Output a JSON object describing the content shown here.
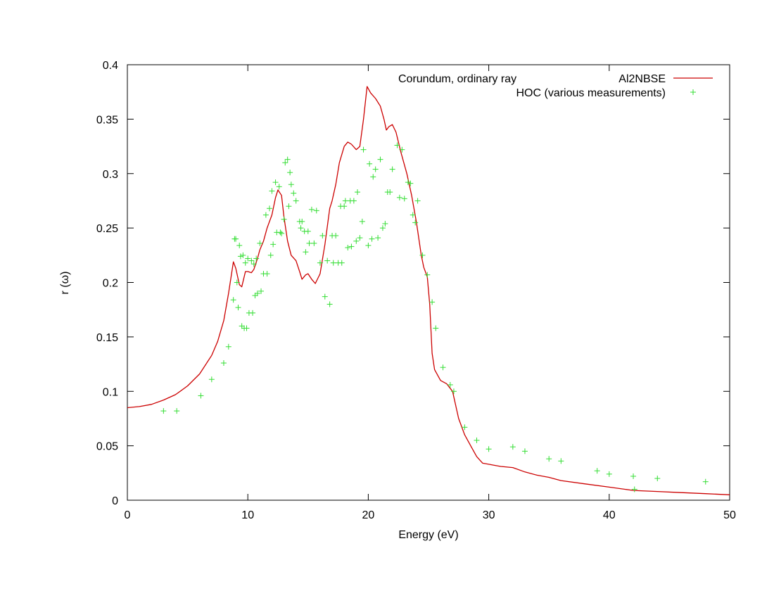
{
  "chart_data": {
    "type": "line",
    "title": "Corundum, ordinary ray",
    "xlabel": "Energy (eV)",
    "ylabel": "r (ω)",
    "xlim": [
      0,
      50
    ],
    "ylim": [
      0,
      0.4
    ],
    "xticks": [
      0,
      10,
      20,
      30,
      40,
      50
    ],
    "yticks": [
      0,
      0.05,
      0.1,
      0.15,
      0.2,
      0.25,
      0.3,
      0.35,
      0.4
    ],
    "xtick_labels": [
      "0",
      "10",
      "20",
      "30",
      "40",
      "50"
    ],
    "ytick_labels": [
      "0",
      "0.05",
      "0.1",
      "0.15",
      "0.2",
      "0.25",
      "0.3",
      "0.35",
      "0.4"
    ],
    "grid": false,
    "legend_position": "top-right",
    "series": [
      {
        "name": "Al2NBSE",
        "kind": "line",
        "color": "#cc0000",
        "points": [
          [
            0,
            0.085
          ],
          [
            1,
            0.086
          ],
          [
            2,
            0.088
          ],
          [
            3,
            0.092
          ],
          [
            4,
            0.097
          ],
          [
            5,
            0.105
          ],
          [
            6,
            0.116
          ],
          [
            7,
            0.133
          ],
          [
            7.5,
            0.146
          ],
          [
            8,
            0.165
          ],
          [
            8.4,
            0.19
          ],
          [
            8.8,
            0.219
          ],
          [
            9,
            0.213
          ],
          [
            9.3,
            0.198
          ],
          [
            9.5,
            0.196
          ],
          [
            9.8,
            0.21
          ],
          [
            10,
            0.21
          ],
          [
            10.3,
            0.209
          ],
          [
            10.5,
            0.212
          ],
          [
            10.8,
            0.222
          ],
          [
            11,
            0.23
          ],
          [
            11.3,
            0.238
          ],
          [
            11.6,
            0.25
          ],
          [
            12,
            0.262
          ],
          [
            12.3,
            0.278
          ],
          [
            12.5,
            0.285
          ],
          [
            12.8,
            0.28
          ],
          [
            13,
            0.26
          ],
          [
            13.3,
            0.238
          ],
          [
            13.6,
            0.225
          ],
          [
            14,
            0.22
          ],
          [
            14.3,
            0.21
          ],
          [
            14.5,
            0.203
          ],
          [
            14.8,
            0.207
          ],
          [
            15,
            0.208
          ],
          [
            15.3,
            0.203
          ],
          [
            15.6,
            0.199
          ],
          [
            16,
            0.208
          ],
          [
            16.4,
            0.235
          ],
          [
            16.8,
            0.268
          ],
          [
            17,
            0.275
          ],
          [
            17.3,
            0.29
          ],
          [
            17.6,
            0.31
          ],
          [
            18,
            0.325
          ],
          [
            18.3,
            0.329
          ],
          [
            18.6,
            0.327
          ],
          [
            19,
            0.322
          ],
          [
            19.3,
            0.325
          ],
          [
            19.6,
            0.35
          ],
          [
            19.9,
            0.38
          ],
          [
            20.2,
            0.374
          ],
          [
            20.6,
            0.369
          ],
          [
            21,
            0.362
          ],
          [
            21.3,
            0.35
          ],
          [
            21.5,
            0.34
          ],
          [
            21.7,
            0.343
          ],
          [
            22,
            0.345
          ],
          [
            22.3,
            0.338
          ],
          [
            22.7,
            0.32
          ],
          [
            23.2,
            0.3
          ],
          [
            23.6,
            0.28
          ],
          [
            24,
            0.255
          ],
          [
            24.2,
            0.24
          ],
          [
            24.4,
            0.225
          ],
          [
            24.6,
            0.214
          ],
          [
            24.9,
            0.205
          ],
          [
            25.1,
            0.18
          ],
          [
            25.3,
            0.135
          ],
          [
            25.5,
            0.12
          ],
          [
            26,
            0.11
          ],
          [
            26.5,
            0.107
          ],
          [
            27,
            0.1
          ],
          [
            27.5,
            0.075
          ],
          [
            28,
            0.06
          ],
          [
            28.5,
            0.05
          ],
          [
            29,
            0.04
          ],
          [
            29.5,
            0.034
          ],
          [
            30,
            0.033
          ],
          [
            30.5,
            0.032
          ],
          [
            31,
            0.031
          ],
          [
            32,
            0.03
          ],
          [
            33,
            0.026
          ],
          [
            34,
            0.023
          ],
          [
            35,
            0.021
          ],
          [
            36,
            0.018
          ],
          [
            38,
            0.015
          ],
          [
            40,
            0.012
          ],
          [
            42,
            0.009
          ],
          [
            44,
            0.008
          ],
          [
            46,
            0.007
          ],
          [
            48,
            0.006
          ],
          [
            50,
            0.005
          ]
        ]
      },
      {
        "name": "HOC (various measurements)",
        "kind": "scatter",
        "marker": "+",
        "color": "#33dd33",
        "points": [
          [
            3,
            0.082
          ],
          [
            4.1,
            0.082
          ],
          [
            6.1,
            0.096
          ],
          [
            7,
            0.111
          ],
          [
            8,
            0.126
          ],
          [
            8.4,
            0.141
          ],
          [
            8.8,
            0.184
          ],
          [
            8.9,
            0.24
          ],
          [
            9,
            0.24
          ],
          [
            9.1,
            0.2
          ],
          [
            9.2,
            0.177
          ],
          [
            9.3,
            0.234
          ],
          [
            9.4,
            0.224
          ],
          [
            9.5,
            0.16
          ],
          [
            9.6,
            0.225
          ],
          [
            9.7,
            0.158
          ],
          [
            9.8,
            0.218
          ],
          [
            9.9,
            0.158
          ],
          [
            10,
            0.222
          ],
          [
            10.1,
            0.172
          ],
          [
            10.3,
            0.22
          ],
          [
            10.4,
            0.172
          ],
          [
            10.5,
            0.217
          ],
          [
            10.6,
            0.188
          ],
          [
            10.7,
            0.222
          ],
          [
            10.8,
            0.19
          ],
          [
            11,
            0.236
          ],
          [
            11.1,
            0.192
          ],
          [
            11.3,
            0.208
          ],
          [
            11.5,
            0.262
          ],
          [
            11.6,
            0.208
          ],
          [
            11.8,
            0.268
          ],
          [
            11.9,
            0.225
          ],
          [
            12,
            0.284
          ],
          [
            12.1,
            0.235
          ],
          [
            12.3,
            0.292
          ],
          [
            12.4,
            0.246
          ],
          [
            12.6,
            0.288
          ],
          [
            12.7,
            0.246
          ],
          [
            12.8,
            0.245
          ],
          [
            13,
            0.258
          ],
          [
            13.1,
            0.31
          ],
          [
            13.3,
            0.313
          ],
          [
            13.4,
            0.27
          ],
          [
            13.5,
            0.301
          ],
          [
            13.6,
            0.29
          ],
          [
            13.8,
            0.282
          ],
          [
            14,
            0.275
          ],
          [
            14.3,
            0.256
          ],
          [
            14.4,
            0.25
          ],
          [
            14.5,
            0.256
          ],
          [
            14.7,
            0.247
          ],
          [
            14.8,
            0.228
          ],
          [
            15,
            0.247
          ],
          [
            15.1,
            0.236
          ],
          [
            15.3,
            0.267
          ],
          [
            15.5,
            0.236
          ],
          [
            15.7,
            0.266
          ],
          [
            16,
            0.218
          ],
          [
            16.2,
            0.243
          ],
          [
            16.4,
            0.187
          ],
          [
            16.6,
            0.22
          ],
          [
            16.8,
            0.18
          ],
          [
            17,
            0.243
          ],
          [
            17.1,
            0.218
          ],
          [
            17.3,
            0.243
          ],
          [
            17.5,
            0.218
          ],
          [
            17.7,
            0.27
          ],
          [
            17.8,
            0.218
          ],
          [
            18,
            0.27
          ],
          [
            18.1,
            0.275
          ],
          [
            18.3,
            0.232
          ],
          [
            18.5,
            0.275
          ],
          [
            18.6,
            0.233
          ],
          [
            18.8,
            0.275
          ],
          [
            19,
            0.238
          ],
          [
            19.1,
            0.283
          ],
          [
            19.3,
            0.241
          ],
          [
            19.5,
            0.256
          ],
          [
            19.6,
            0.322
          ],
          [
            20,
            0.234
          ],
          [
            20.1,
            0.309
          ],
          [
            20.3,
            0.24
          ],
          [
            20.4,
            0.297
          ],
          [
            20.6,
            0.304
          ],
          [
            20.8,
            0.241
          ],
          [
            21,
            0.313
          ],
          [
            21.2,
            0.25
          ],
          [
            21.4,
            0.254
          ],
          [
            21.6,
            0.283
          ],
          [
            21.8,
            0.283
          ],
          [
            22,
            0.304
          ],
          [
            22.4,
            0.326
          ],
          [
            22.6,
            0.278
          ],
          [
            22.8,
            0.322
          ],
          [
            23,
            0.277
          ],
          [
            23.3,
            0.292
          ],
          [
            23.5,
            0.291
          ],
          [
            23.7,
            0.262
          ],
          [
            23.9,
            0.255
          ],
          [
            24.1,
            0.275
          ],
          [
            24.5,
            0.225
          ],
          [
            24.9,
            0.207
          ],
          [
            25.3,
            0.182
          ],
          [
            25.6,
            0.158
          ],
          [
            26.2,
            0.122
          ],
          [
            26.8,
            0.106
          ],
          [
            27.1,
            0.1
          ],
          [
            28,
            0.067
          ],
          [
            29,
            0.055
          ],
          [
            30,
            0.047
          ],
          [
            32,
            0.049
          ],
          [
            33,
            0.045
          ],
          [
            35,
            0.038
          ],
          [
            36,
            0.036
          ],
          [
            39,
            0.027
          ],
          [
            40,
            0.024
          ],
          [
            42,
            0.022
          ],
          [
            42.1,
            0.01
          ],
          [
            44,
            0.02
          ],
          [
            48,
            0.017
          ]
        ]
      }
    ]
  }
}
